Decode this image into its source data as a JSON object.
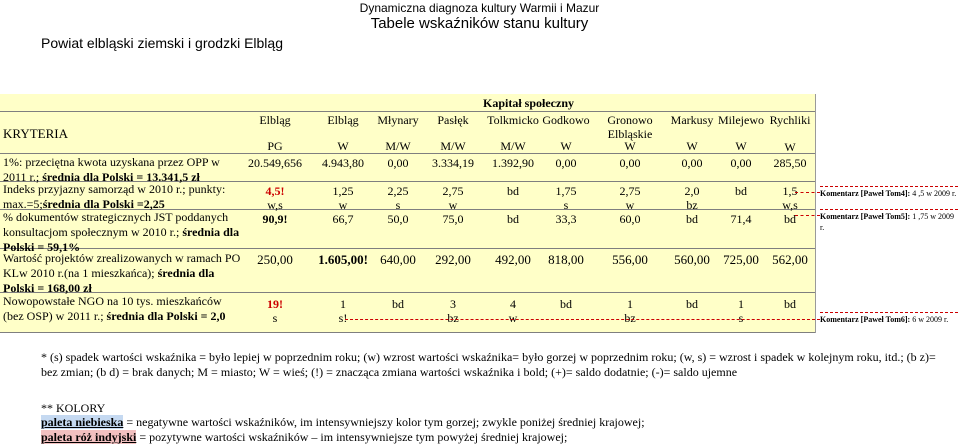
{
  "header": {
    "line1": "Dynamiczna diagnoza kultury Warmii i Mazur",
    "line2": "Tabele wskaźników stanu kultury",
    "region": "Powiat elbląski ziemski i grodzki Elbląg"
  },
  "table": {
    "group_title": "Kapitał społeczny",
    "criteria_title": "KRYTERIA",
    "columns": [
      {
        "name": "Elbląg",
        "type": "PG"
      },
      {
        "name": "Elbląg",
        "type": "W"
      },
      {
        "name": "Młynary",
        "type": "M/W"
      },
      {
        "name": "Pasłęk",
        "type": "M/W"
      },
      {
        "name": "Tolkmicko",
        "type": "M/W"
      },
      {
        "name": "Godkowo",
        "type": "W"
      },
      {
        "name": "Gronowo Elbląskie",
        "type": "W"
      },
      {
        "name": "Markusy",
        "type": "W"
      },
      {
        "name": "Milejewo",
        "type": "W"
      },
      {
        "name": "Rychliki",
        "type": "W"
      }
    ],
    "rows": [
      {
        "label": "1%: przeciętna kwota uzyskana przez OPP w 2011 r.; średnia dla Polski = 13.341,5 zł",
        "values": [
          "20.549,656",
          "4.943,80",
          "0,00",
          "3.334,19",
          "1.392,90",
          "0,00",
          "0,00",
          "0,00",
          "0,00",
          "285,50"
        ]
      },
      {
        "label": "Indeks przyjazny samorząd w 2010 r.; punkty: max.=5;średnia dla Polski =2,25",
        "values": [
          "4,5!",
          "1,25",
          "2,25",
          "2,75",
          "bd",
          "1,75",
          "2,75",
          "2,0",
          "bd",
          "1,5"
        ],
        "trends": [
          "w,s",
          "w",
          "s",
          "w",
          "",
          "s",
          "w",
          "bz",
          "",
          "w,s"
        ]
      },
      {
        "label": "% dokumentów strategicznych JST poddanych konsultacjom społecznym w 2010 r.; średnia dla Polski = 59,1%",
        "values": [
          "90,9!",
          "66,7",
          "50,0",
          "75,0",
          "bd",
          "33,3",
          "60,0",
          "bd",
          "71,4",
          "bd"
        ]
      },
      {
        "label": "Wartość projektów zrealizowanych w ramach PO KLw 2010 r.(na 1 mieszkańca); średnia dla Polski = 168,00 zł",
        "values": [
          "250,00",
          "1.605,00!",
          "640,00",
          "292,00",
          "492,00",
          "818,00",
          "556,00",
          "560,00",
          "725,00",
          "562,00"
        ]
      },
      {
        "label": "Nowopowstałe NGO na 10 tys. mieszkańców (bez OSP) w 2011 r.; średnia dla Polski = 2,0",
        "values": [
          "19!",
          "1",
          "bd",
          "3",
          "4",
          "bd",
          "1",
          "bd",
          "1",
          "bd"
        ],
        "trends": [
          "s",
          "s!",
          "",
          "bz",
          "w",
          "",
          "bz",
          "",
          "s",
          ""
        ]
      }
    ]
  },
  "comments": [
    {
      "author": "Komentarz [Paweł Tom4]:",
      "text": "4 ,5 w 2009 r."
    },
    {
      "author": "Komentarz [Paweł Tom5]:",
      "text": "1 ,75 w 2009 r."
    },
    {
      "author": "Komentarz [Paweł Tom6]:",
      "text": "6 w 2009 r."
    }
  ],
  "footnotes": {
    "legend": "* (s) spadek wartości wskaźnika = było lepiej w poprzednim roku; (w) wzrost wartości wskaźnika= było gorzej w poprzednim roku; (w, s) = wzrost i spadek w kolejnym roku, itd.; (b z)= bez zmian; (b d) = brak danych; M = miasto; W = wieś; (!) = znacząca zmiana wartości wskaźnika i bold; (+)= saldo dodatnie; (-)= saldo ujemne",
    "colors_title": "** KOLORY",
    "blue_label": "paleta niebieska",
    "blue_text": " =  negatywne wartości wskaźników, im intensywniejszy kolor tym gorzej; zwykle poniżej średniej krajowej;",
    "pink_label": "paleta róż indyjski",
    "pink_text": " = pozytywne wartości wskaźników – im intensywniejsze tym powyżej średniej krajowej;"
  },
  "colors": {
    "table_bg": "#ffffc8",
    "highlight_red": "#cc0000",
    "comment_border": "#cc0000",
    "blue_palette": "#c5d9f1",
    "pink_palette": "#f2c0c0"
  }
}
